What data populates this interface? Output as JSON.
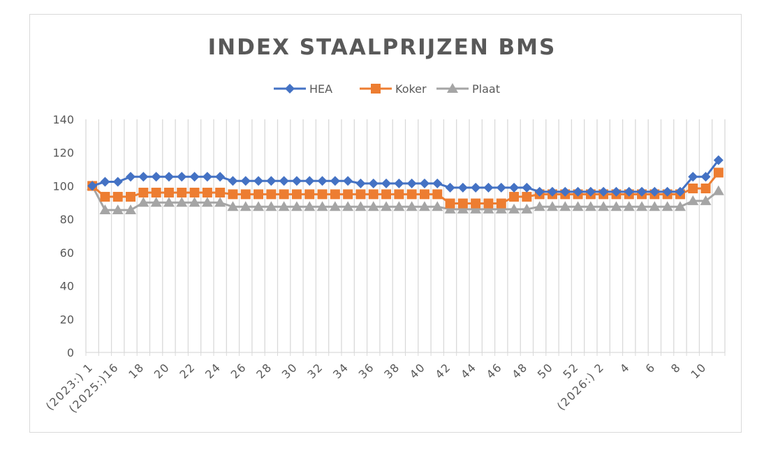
{
  "chart_data": {
    "type": "line",
    "title": "INDEX STAALPRIJZEN BMS",
    "legend_position": "top",
    "ylim": [
      0,
      140
    ],
    "yticks": [
      0,
      20,
      40,
      60,
      80,
      100,
      120,
      140
    ],
    "grid": {
      "vertical": true,
      "horizontal": false
    },
    "x_tick_labels": [
      "(2023:) 1",
      "(2025:)16",
      "18",
      "20",
      "22",
      "24",
      "26",
      "28",
      "30",
      "32",
      "34",
      "36",
      "38",
      "40",
      "42",
      "44",
      "46",
      "48",
      "50",
      "52",
      "(2026:) 2",
      "4",
      "6",
      "8",
      "10"
    ],
    "categories": [
      "2023-1",
      "2025-15",
      "2025-16",
      "2025-17",
      "2025-18",
      "2025-19",
      "2025-20",
      "2025-21",
      "2025-22",
      "2025-23",
      "2025-24",
      "2025-25",
      "2025-26",
      "2025-27",
      "2025-28",
      "2025-29",
      "2025-30",
      "2025-31",
      "2025-32",
      "2025-33",
      "2025-34",
      "2025-35",
      "2025-36",
      "2025-37",
      "2025-38",
      "2025-39",
      "2025-40",
      "2025-41",
      "2025-42",
      "2025-43",
      "2025-44",
      "2025-45",
      "2025-46",
      "2025-47",
      "2025-48",
      "2025-49",
      "2025-50",
      "2025-51",
      "2025-52",
      "2026-1",
      "2026-2",
      "2026-3",
      "2026-4",
      "2026-5",
      "2026-6",
      "2026-7",
      "2026-8",
      "2026-9",
      "2026-10",
      "2026-11"
    ],
    "series": [
      {
        "name": "HEA",
        "color": "#4472c4",
        "marker": "diamond",
        "values": [
          100,
          102.5,
          102.5,
          105.5,
          105.5,
          105.5,
          105.5,
          105.5,
          105.5,
          105.5,
          105.5,
          103,
          103,
          103,
          103,
          103,
          103,
          103,
          103,
          103,
          103,
          101.5,
          101.5,
          101.5,
          101.5,
          101.5,
          101.5,
          101.5,
          99,
          99,
          99,
          99,
          99,
          99,
          99,
          96.5,
          96.5,
          96.5,
          96.5,
          96.5,
          96.5,
          96.5,
          96.5,
          96.5,
          96.5,
          96.5,
          96.5,
          105.5,
          105.5,
          115.5
        ]
      },
      {
        "name": "Koker",
        "color": "#ed7d31",
        "marker": "square",
        "values": [
          100,
          93.5,
          93.5,
          93.5,
          96,
          96,
          96,
          96,
          96,
          96,
          96,
          95,
          95,
          95,
          95,
          95,
          95,
          95,
          95,
          95,
          95,
          95,
          95,
          95,
          95,
          95,
          95,
          95,
          89.5,
          89.5,
          89.5,
          89.5,
          89.5,
          93.5,
          93.5,
          95,
          95,
          95,
          95,
          95,
          95,
          95,
          95,
          95,
          95,
          95,
          95,
          98.5,
          98.5,
          108
        ]
      },
      {
        "name": "Plaat",
        "color": "#a5a5a5",
        "marker": "triangle",
        "values": [
          100,
          85.5,
          85.5,
          85.5,
          90,
          90,
          90,
          90,
          90,
          90,
          90,
          87.5,
          87.5,
          87.5,
          87.5,
          87.5,
          87.5,
          87.5,
          87.5,
          87.5,
          87.5,
          87.5,
          87.5,
          87.5,
          87.5,
          87.5,
          87.5,
          87.5,
          86,
          86,
          86,
          86,
          86,
          86,
          86,
          87.5,
          87.5,
          87.5,
          87.5,
          87.5,
          87.5,
          87.5,
          87.5,
          87.5,
          87.5,
          87.5,
          87.5,
          91,
          91,
          97
        ]
      }
    ]
  }
}
